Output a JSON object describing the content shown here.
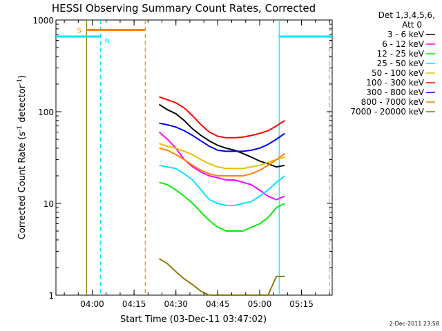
{
  "chart_data": {
    "type": "line",
    "title": "HESSI Observing Summary Count Rates, Corrected",
    "xlabel": "Start Time (03-Dec-11 03:47:02)",
    "ylabel_main": "Corrected Count Rate (s",
    "ylabel_sup1": "-1",
    "ylabel_mid": " detector",
    "ylabel_sup2": "-1",
    "ylabel_end": ")",
    "yscale": "log",
    "ylim": [
      1,
      1000
    ],
    "xlim": [
      "03:47",
      "05:26"
    ],
    "x_ticks": [
      "04:00",
      "04:15",
      "04:30",
      "04:45",
      "05:00",
      "05:15"
    ],
    "y_ticks": [
      "1",
      "10",
      "100",
      "1000"
    ],
    "legend_header": [
      "Det 1,3,4,5,6,",
      "Att 0"
    ],
    "legend_placement": "right",
    "timestamp": "2-Dec-2011 23:58",
    "series": [
      {
        "name": "3 - 6 keV",
        "color": "#000000",
        "x": [
          "04:24",
          "04:27",
          "04:30",
          "04:33",
          "04:36",
          "04:39",
          "04:42",
          "04:45",
          "04:48",
          "04:51",
          "04:54",
          "04:57",
          "05:00",
          "05:03",
          "05:06",
          "05:09"
        ],
        "values": [
          120,
          105,
          95,
          80,
          65,
          55,
          48,
          43,
          40,
          38,
          35,
          32,
          29,
          27,
          25,
          26
        ]
      },
      {
        "name": "6 - 12 keV",
        "color": "#ff00ff",
        "x": [
          "04:24",
          "04:27",
          "04:30",
          "04:33",
          "04:36",
          "04:39",
          "04:42",
          "04:45",
          "04:48",
          "04:51",
          "04:54",
          "04:57",
          "05:00",
          "05:03",
          "05:06",
          "05:09"
        ],
        "values": [
          60,
          50,
          40,
          30,
          25,
          22,
          20,
          19,
          18,
          18,
          17,
          16,
          14,
          12,
          11,
          12
        ]
      },
      {
        "name": "12 - 25 keV",
        "color": "#00ee00",
        "x": [
          "04:24",
          "04:27",
          "04:30",
          "04:33",
          "04:36",
          "04:39",
          "04:42",
          "04:45",
          "04:48",
          "04:51",
          "04:54",
          "04:57",
          "05:00",
          "05:03",
          "05:06",
          "05:09"
        ],
        "values": [
          17,
          16,
          14,
          12,
          10,
          8,
          6.5,
          5.5,
          5,
          5,
          5,
          5.5,
          6,
          7,
          9,
          10
        ]
      },
      {
        "name": "25 - 50 keV",
        "color": "#00e5ff",
        "x": [
          "04:24",
          "04:27",
          "04:30",
          "04:33",
          "04:36",
          "04:39",
          "04:42",
          "04:45",
          "04:48",
          "04:51",
          "04:54",
          "04:57",
          "05:00",
          "05:03",
          "05:06",
          "05:09"
        ],
        "values": [
          26,
          25,
          24,
          21,
          18,
          14,
          11,
          10,
          9.5,
          9.5,
          10,
          10.5,
          12,
          14,
          17,
          20
        ]
      },
      {
        "name": "50 - 100 keV",
        "color": "#e8c000",
        "x": [
          "04:24",
          "04:27",
          "04:30",
          "04:33",
          "04:36",
          "04:39",
          "04:42",
          "04:45",
          "04:48",
          "04:51",
          "04:54",
          "04:57",
          "05:00",
          "05:03",
          "05:06",
          "05:09"
        ],
        "values": [
          45,
          42,
          40,
          37,
          34,
          30,
          27,
          25,
          24,
          24,
          24,
          25,
          26,
          28,
          30,
          32
        ]
      },
      {
        "name": "100 - 300 keV",
        "color": "#ff0000",
        "x": [
          "04:24",
          "04:27",
          "04:30",
          "04:33",
          "04:36",
          "04:39",
          "04:42",
          "04:45",
          "04:48",
          "04:51",
          "04:54",
          "04:57",
          "05:00",
          "05:03",
          "05:06",
          "05:09"
        ],
        "values": [
          145,
          135,
          125,
          110,
          90,
          72,
          60,
          54,
          52,
          52,
          53,
          55,
          58,
          62,
          70,
          80
        ]
      },
      {
        "name": "300 - 800 keV",
        "color": "#0000ff",
        "x": [
          "04:24",
          "04:27",
          "04:30",
          "04:33",
          "04:36",
          "04:39",
          "04:42",
          "04:45",
          "04:48",
          "04:51",
          "04:54",
          "04:57",
          "05:00",
          "05:03",
          "05:06",
          "05:09"
        ],
        "values": [
          75,
          72,
          68,
          62,
          55,
          48,
          42,
          38,
          37,
          37,
          37,
          38,
          40,
          44,
          50,
          58
        ]
      },
      {
        "name": "800 - 7000 keV",
        "color": "#ff8000",
        "x": [
          "04:24",
          "04:27",
          "04:30",
          "04:33",
          "04:36",
          "04:39",
          "04:42",
          "04:45",
          "04:48",
          "04:51",
          "04:54",
          "04:57",
          "05:00",
          "05:03",
          "05:06",
          "05:09"
        ],
        "values": [
          40,
          38,
          34,
          30,
          26,
          23,
          21,
          20,
          20,
          20,
          20,
          21,
          23,
          26,
          30,
          35
        ]
      },
      {
        "name": "7000 - 20000 keV",
        "color": "#8b7d00",
        "x": [
          "04:24",
          "04:27",
          "04:30",
          "04:33",
          "04:36",
          "04:39",
          "04:42",
          "04:45",
          "04:48",
          "04:51",
          "04:54",
          "04:57",
          "05:00",
          "05:03",
          "05:06",
          "05:09"
        ],
        "values": [
          2.5,
          2.2,
          1.8,
          1.5,
          1.3,
          1.1,
          1.0,
          1.0,
          1.0,
          1.0,
          1.0,
          1.0,
          1.0,
          1.0,
          1.6,
          1.6
        ]
      }
    ],
    "flags": [
      {
        "label": "S",
        "color": "#ff8000",
        "start": "03:58",
        "end": "04:19",
        "value": 780
      },
      {
        "label": "N",
        "color": "#00e5ff",
        "start": "03:47",
        "end": "04:03",
        "value": 660
      },
      {
        "label": "",
        "color": "#00e5ff",
        "start": "05:07",
        "end": "05:26",
        "value": 660
      }
    ],
    "vertical_markers": [
      {
        "time": "03:58",
        "color": "#8b7d00",
        "style": "solid"
      },
      {
        "time": "04:03",
        "color": "#00e5ff",
        "style": "dashed"
      },
      {
        "time": "04:19",
        "color": "#ff8000",
        "style": "dashed"
      },
      {
        "time": "05:07",
        "color": "#00e5ff",
        "style": "solid"
      },
      {
        "time": "05:25",
        "color": "#00e5ff",
        "style": "dashed"
      }
    ]
  }
}
